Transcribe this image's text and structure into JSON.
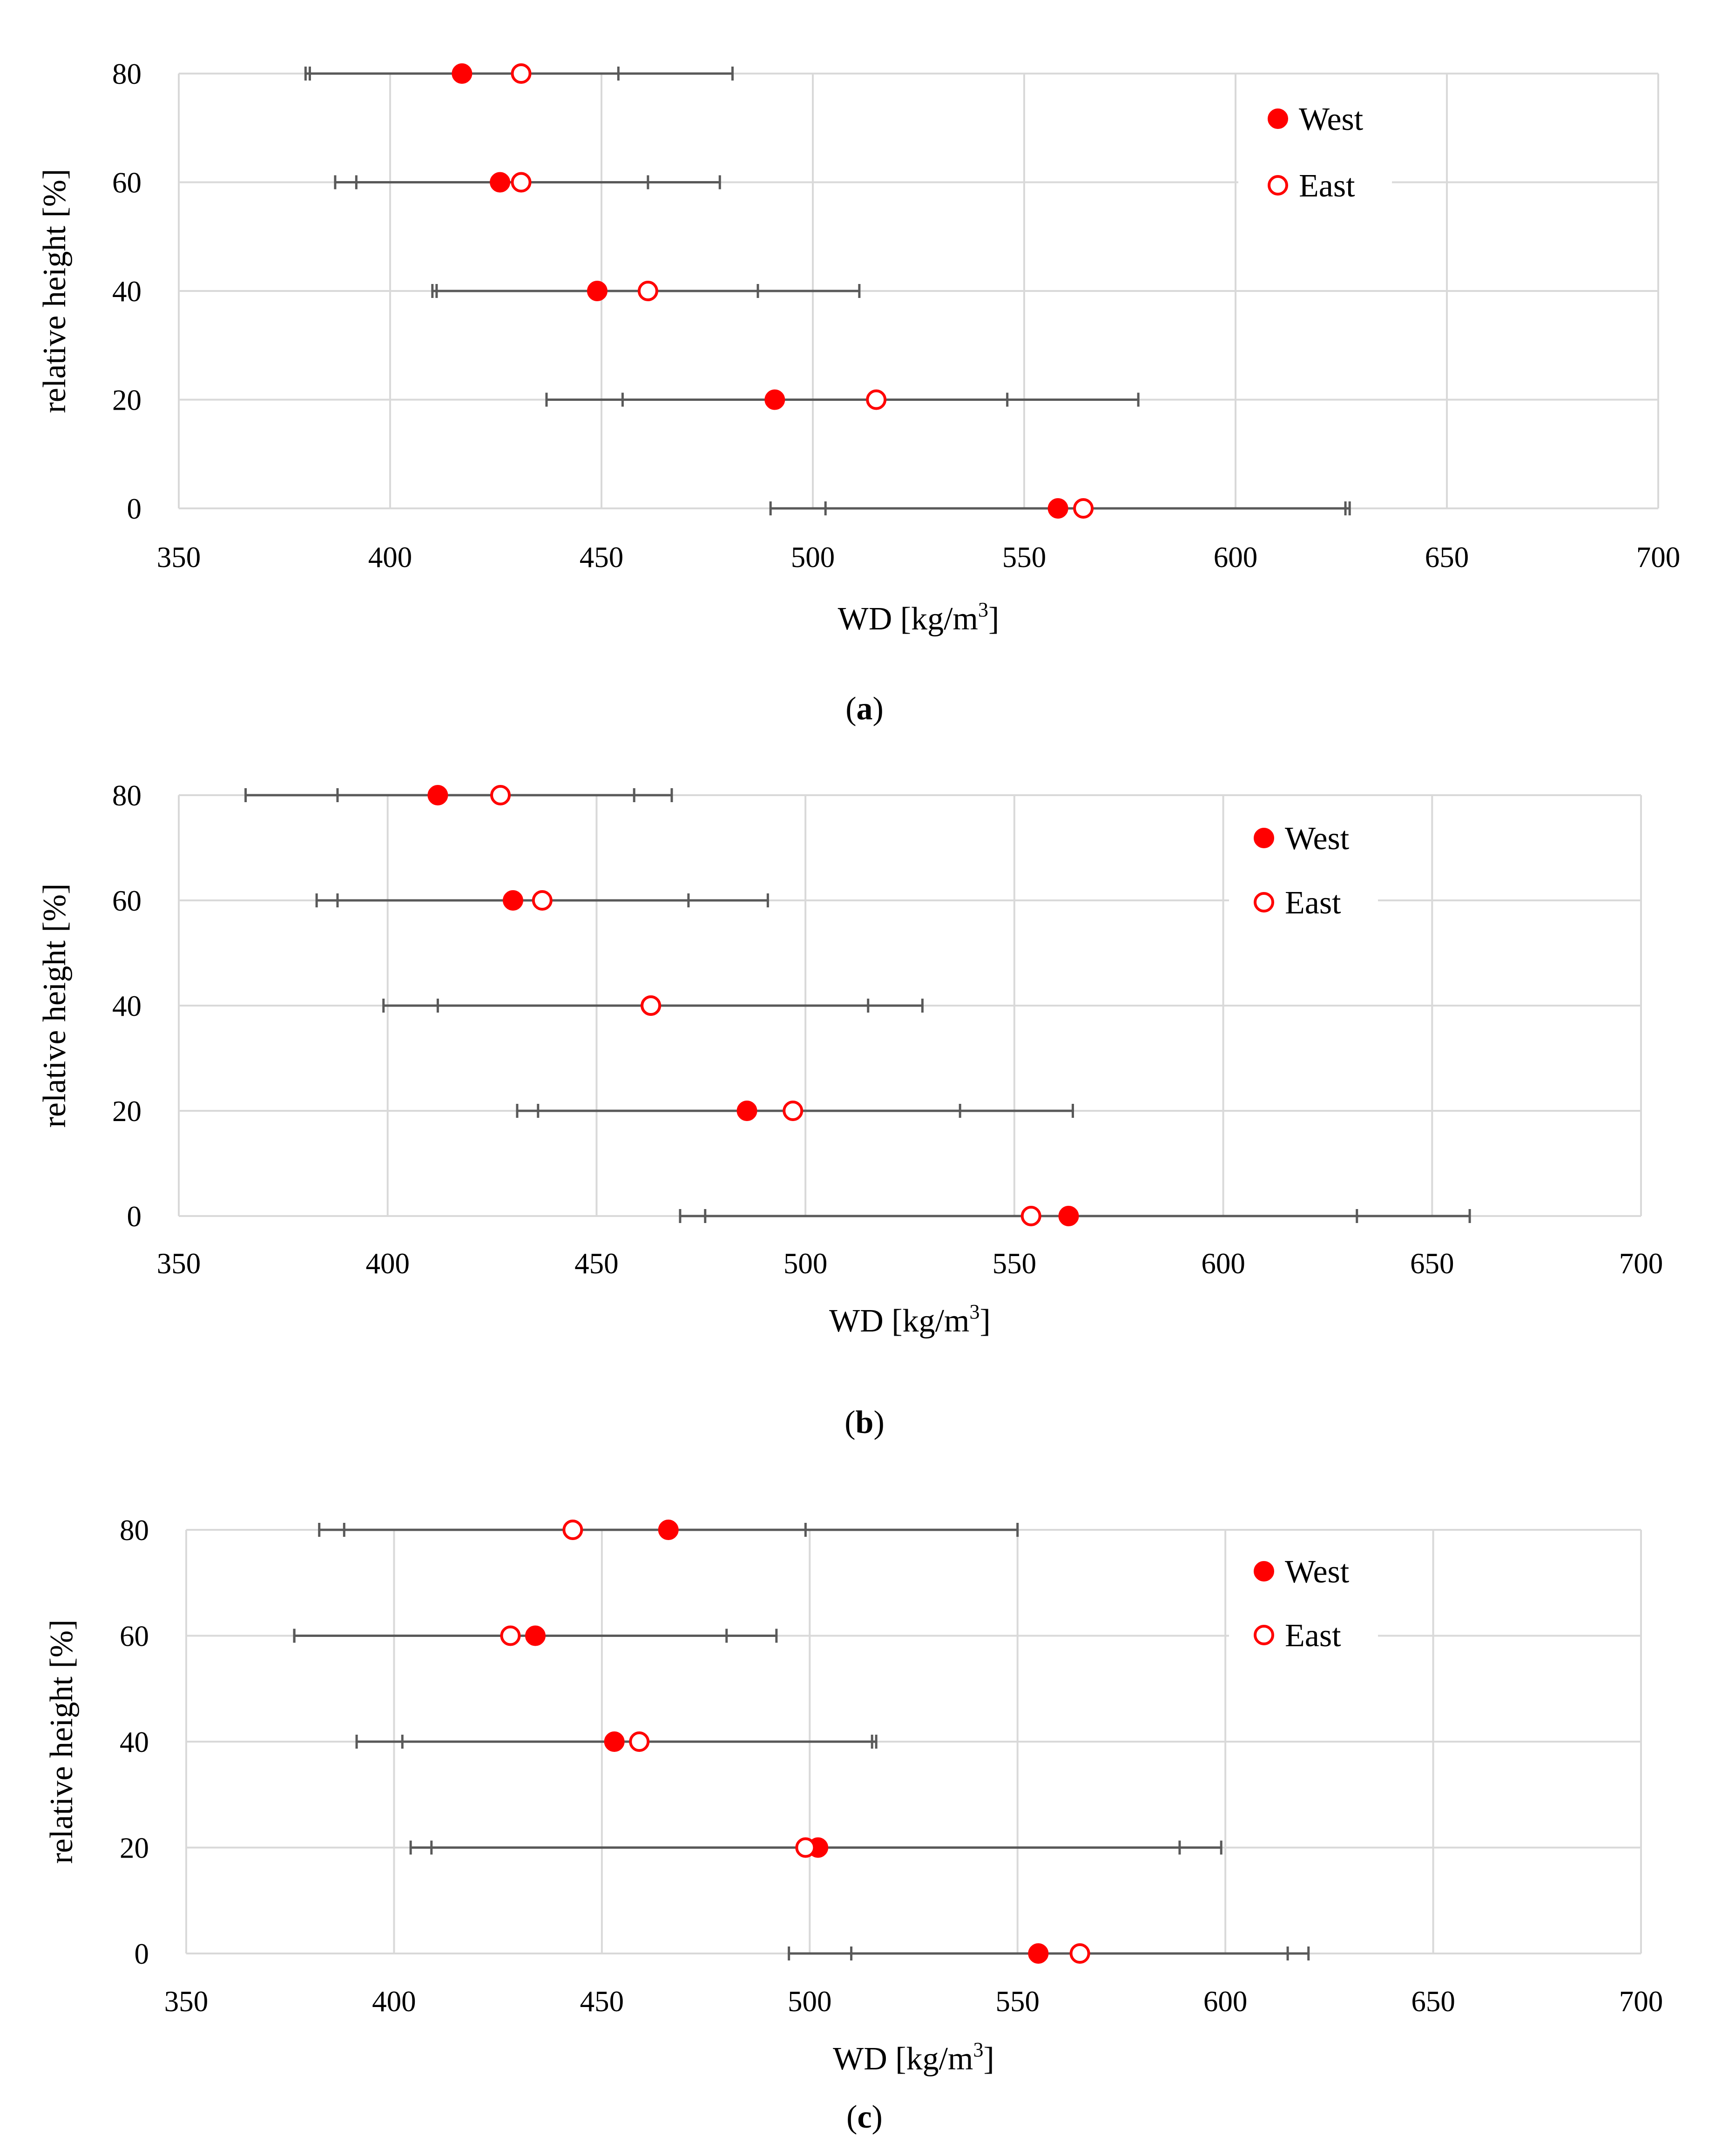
{
  "figure": {
    "panels_count": 3,
    "colors": {
      "west": "#ff0000",
      "east": "#ff0000",
      "error_bar": "#595959",
      "grid": "#d9d9d9"
    }
  },
  "chart_data": [
    {
      "type": "scatter",
      "panel": "a",
      "caption": {
        "open": "(",
        "letter": "a",
        "close": ")"
      },
      "xlabel": {
        "base": "WD [kg/m",
        "sup": "3",
        "close": "]"
      },
      "ylabel": "relative height [%]",
      "xlim": [
        350,
        700
      ],
      "ylim": [
        0,
        80
      ],
      "xticks": [
        "350",
        "400",
        "450",
        "500",
        "550",
        "600",
        "650",
        "700"
      ],
      "yticks": [
        "0",
        "20",
        "40",
        "60",
        "80"
      ],
      "legend": [
        "West",
        "East"
      ],
      "legend_position": "top-right",
      "series": [
        {
          "name": "West",
          "marker": "filled-circle",
          "points": [
            {
              "y": 80,
              "x": 417,
              "err_low": 381,
              "err_high": 454
            },
            {
              "y": 60,
              "x": 426,
              "err_low": 392,
              "err_high": 461
            },
            {
              "y": 40,
              "x": 449,
              "err_low": 411,
              "err_high": 487
            },
            {
              "y": 20,
              "x": 491,
              "err_low": 455,
              "err_high": 546
            },
            {
              "y": 0,
              "x": 558,
              "err_low": 490,
              "err_high": 626
            }
          ]
        },
        {
          "name": "East",
          "marker": "open-circle",
          "points": [
            {
              "y": 80,
              "x": 431,
              "err_low": 380,
              "err_high": 481
            },
            {
              "y": 60,
              "x": 431,
              "err_low": 387,
              "err_high": 478
            },
            {
              "y": 40,
              "x": 461,
              "err_low": 410,
              "err_high": 511
            },
            {
              "y": 20,
              "x": 515,
              "err_low": 437,
              "err_high": 577
            },
            {
              "y": 0,
              "x": 564,
              "err_low": 503,
              "err_high": 627
            }
          ]
        }
      ]
    },
    {
      "type": "scatter",
      "panel": "b",
      "caption": {
        "open": "(",
        "letter": "b",
        "close": ")"
      },
      "xlabel": {
        "base": "WD [kg/m",
        "sup": "3",
        "close": "]"
      },
      "ylabel": "relative height [%]",
      "xlim": [
        350,
        700
      ],
      "ylim": [
        0,
        80
      ],
      "xticks": [
        "350",
        "400",
        "450",
        "500",
        "550",
        "600",
        "650",
        "700"
      ],
      "yticks": [
        "0",
        "20",
        "40",
        "60",
        "80"
      ],
      "legend": [
        "West",
        "East"
      ],
      "legend_position": "top-right",
      "series": [
        {
          "name": "West",
          "marker": "filled-circle",
          "points": [
            {
              "y": 80,
              "x": 412,
              "err_low": 366,
              "err_high": 459
            },
            {
              "y": 60,
              "x": 430,
              "err_low": 388,
              "err_high": 472
            },
            {
              "y": 40,
              "x": 463,
              "err_low": 412,
              "err_high": 515
            },
            {
              "y": 20,
              "x": 486,
              "err_low": 436,
              "err_high": 537
            },
            {
              "y": 0,
              "x": 563,
              "err_low": 470,
              "err_high": 659
            }
          ]
        },
        {
          "name": "East",
          "marker": "open-circle",
          "points": [
            {
              "y": 80,
              "x": 427,
              "err_low": 388,
              "err_high": 468
            },
            {
              "y": 60,
              "x": 437,
              "err_low": 383,
              "err_high": 491
            },
            {
              "y": 40,
              "x": 463,
              "err_low": 399,
              "err_high": 528
            },
            {
              "y": 20,
              "x": 497,
              "err_low": 431,
              "err_high": 564
            },
            {
              "y": 0,
              "x": 554,
              "err_low": 476,
              "err_high": 632
            }
          ]
        }
      ]
    },
    {
      "type": "scatter",
      "panel": "c",
      "caption": {
        "open": "(",
        "letter": "c",
        "close": ")"
      },
      "xlabel": {
        "base": "WD [kg/m",
        "sup": "3",
        "close": "]"
      },
      "ylabel": "relative height [%]",
      "xlim": [
        350,
        700
      ],
      "ylim": [
        0,
        80
      ],
      "xticks": [
        "350",
        "400",
        "450",
        "500",
        "550",
        "600",
        "650",
        "700"
      ],
      "yticks": [
        "0",
        "20",
        "40",
        "60",
        "80"
      ],
      "legend": [
        "West",
        "East"
      ],
      "legend_position": "top-right",
      "series": [
        {
          "name": "West",
          "marker": "filled-circle",
          "points": [
            {
              "y": 80,
              "x": 466,
              "err_low": 382,
              "err_high": 550
            },
            {
              "y": 60,
              "x": 434,
              "err_low": 376,
              "err_high": 492
            },
            {
              "y": 40,
              "x": 453,
              "err_low": 391,
              "err_high": 515
            },
            {
              "y": 20,
              "x": 502,
              "err_low": 404,
              "err_high": 599
            },
            {
              "y": 0,
              "x": 555,
              "err_low": 495,
              "err_high": 615
            }
          ]
        },
        {
          "name": "East",
          "marker": "open-circle",
          "points": [
            {
              "y": 80,
              "x": 443,
              "err_low": 388,
              "err_high": 499
            },
            {
              "y": 60,
              "x": 428,
              "err_low": 376,
              "err_high": 480
            },
            {
              "y": 40,
              "x": 459,
              "err_low": 402,
              "err_high": 516
            },
            {
              "y": 20,
              "x": 499,
              "err_low": 409,
              "err_high": 589
            },
            {
              "y": 0,
              "x": 565,
              "err_low": 510,
              "err_high": 620
            }
          ]
        }
      ]
    }
  ]
}
